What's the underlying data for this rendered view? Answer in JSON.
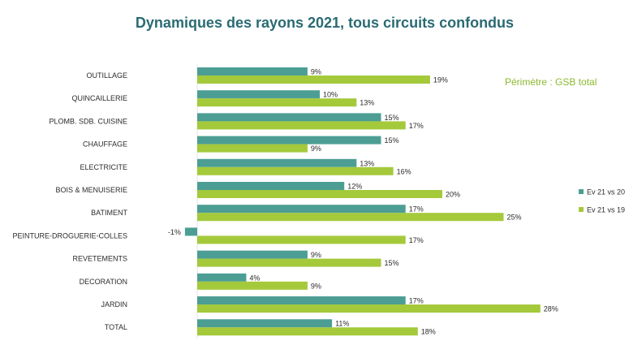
{
  "chart_data": {
    "type": "bar",
    "orientation": "horizontal",
    "title": "Dynamiques des rayons 2021, tous circuits confondus",
    "annotation": "Périmètre : GSB total",
    "xlabel": "",
    "ylabel": "",
    "xlim": [
      -2,
      28
    ],
    "grid": false,
    "legend_position": "right",
    "categories": [
      "OUTILLAGE",
      "QUINCAILLERIE",
      "PLOMB. SDB. CUISINE",
      "CHAUFFAGE",
      "ELECTRICITE",
      "BOIS & MENUISERIE",
      "BATIMENT",
      "PEINTURE-DROGUERIE-COLLES",
      "REVETEMENTS",
      "DECORATION",
      "JARDIN",
      "TOTAL"
    ],
    "series": [
      {
        "name": "Ev 21 vs 20",
        "color": "#4c9e94",
        "values": [
          9,
          10,
          15,
          15,
          13,
          12,
          17,
          -1,
          9,
          4,
          17,
          11
        ],
        "labels": [
          "9%",
          "10%",
          "15%",
          "15%",
          "13%",
          "12%",
          "17%",
          "-1%",
          "9%",
          "4%",
          "17%",
          "11%"
        ]
      },
      {
        "name": "Ev 21 vs 19",
        "color": "#a4c93b",
        "values": [
          19,
          13,
          17,
          9,
          16,
          20,
          25,
          17,
          15,
          9,
          28,
          18
        ],
        "labels": [
          "19%",
          "13%",
          "17%",
          "9%",
          "16%",
          "20%",
          "25%",
          "17%",
          "15%",
          "9%",
          "28%",
          "18%"
        ]
      }
    ]
  }
}
